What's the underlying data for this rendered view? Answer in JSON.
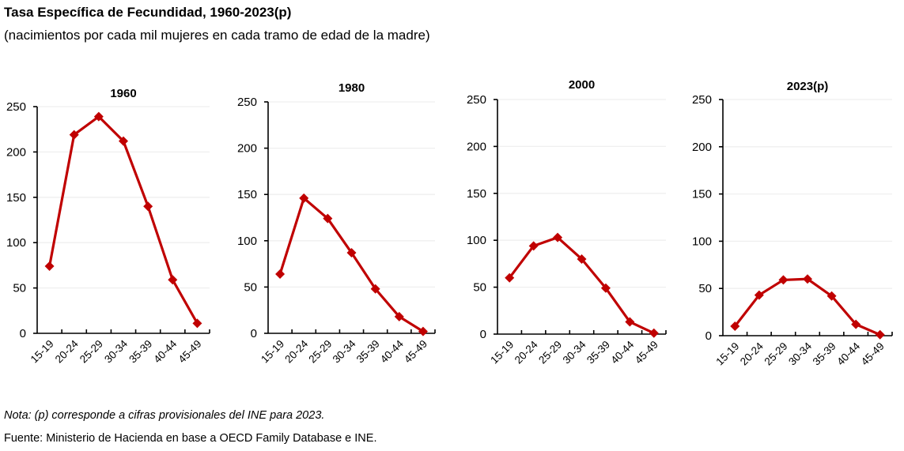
{
  "header": {
    "title": "Tasa Específica de Fecundidad, 1960-2023(p)",
    "subtitle": "(nacimientos por cada mil mujeres en cada tramo de edad de la madre)"
  },
  "footer": {
    "note": "Nota: (p) corresponde a cifras provisionales del INE para 2023.",
    "source": "Fuente: Ministerio de Hacienda en base a OECD Family Database e INE."
  },
  "colors": {
    "series": "#c00000",
    "grid": "#efefef",
    "axis": "#000000"
  },
  "chart_data": [
    {
      "type": "line",
      "title": "1960",
      "categories": [
        "15-19",
        "20-24",
        "25-29",
        "30-34",
        "35-39",
        "40-44",
        "45-49"
      ],
      "values": [
        74,
        219,
        239,
        212,
        140,
        59,
        11
      ],
      "xlabel": "",
      "ylabel": "",
      "ylim": [
        0,
        250
      ],
      "yticks": [
        0,
        50,
        100,
        150,
        200,
        250
      ],
      "grid": true,
      "marker": "diamond"
    },
    {
      "type": "line",
      "title": "1980",
      "categories": [
        "15-19",
        "20-24",
        "25-29",
        "30-34",
        "35-39",
        "40-44",
        "45-49"
      ],
      "values": [
        64,
        146,
        124,
        87,
        48,
        18,
        2
      ],
      "xlabel": "",
      "ylabel": "",
      "ylim": [
        0,
        250
      ],
      "yticks": [
        0,
        50,
        100,
        150,
        200,
        250
      ],
      "grid": true,
      "marker": "diamond"
    },
    {
      "type": "line",
      "title": "2000",
      "categories": [
        "15-19",
        "20-24",
        "25-29",
        "30-34",
        "35-39",
        "40-44",
        "45-49"
      ],
      "values": [
        60,
        94,
        103,
        80,
        49,
        13,
        1
      ],
      "xlabel": "",
      "ylabel": "",
      "ylim": [
        0,
        250
      ],
      "yticks": [
        0,
        50,
        100,
        150,
        200,
        250
      ],
      "grid": true,
      "marker": "diamond"
    },
    {
      "type": "line",
      "title": "2023(p)",
      "categories": [
        "15-19",
        "20-24",
        "25-29",
        "30-34",
        "35-39",
        "40-44",
        "45-49"
      ],
      "values": [
        10,
        43,
        59,
        60,
        42,
        12,
        1
      ],
      "xlabel": "",
      "ylabel": "",
      "ylim": [
        0,
        250
      ],
      "yticks": [
        0,
        50,
        100,
        150,
        200,
        250
      ],
      "grid": true,
      "marker": "diamond"
    }
  ]
}
